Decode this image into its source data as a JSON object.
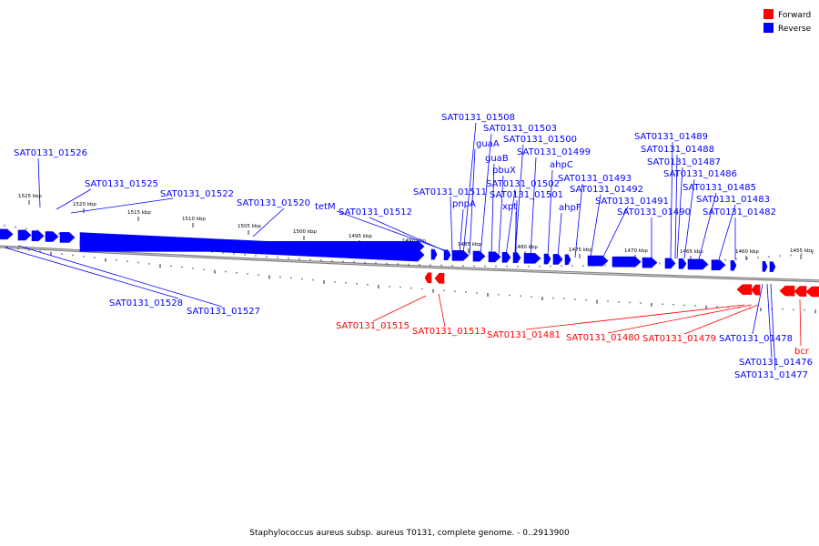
{
  "colors": {
    "forward": "#ff0000",
    "reverse": "#0000ff",
    "backbone": "#808080"
  },
  "legend": [
    {
      "label": "Forward",
      "color": "#ff0000"
    },
    {
      "label": "Reverse",
      "color": "#0000ff"
    }
  ],
  "caption": "Staphylococcus aureus subsp. aureus T0131, complete genome. - 0..2913900",
  "ticks": [
    "1525 kbp",
    "1520 kbp",
    "1515 kbp",
    "1510 kbp",
    "1505 kbp",
    "1500 kbp",
    "1495 kbp",
    "1490 kbp",
    "1485 kbp",
    "1480 kbp",
    "1475 kbp",
    "1470 kbp",
    "1465 kbp",
    "1460 kbp",
    "1455 kbp"
  ],
  "labels": {
    "reverse_top": [
      "SAT0131_01526",
      "SAT0131_01525",
      "SAT0131_01522",
      "SAT0131_01520",
      "tetM",
      "SAT0131_01512",
      "SAT0131_01511",
      "pnpA",
      "SAT0131_01508",
      "guaA",
      "SAT0131_01503",
      "guaB",
      "pbuX",
      "SAT0131_01502",
      "xpt",
      "SAT0131_01501",
      "SAT0131_01500",
      "SAT0131_01499",
      "ahpC",
      "ahpF",
      "SAT0131_01493",
      "SAT0131_01492",
      "SAT0131_01491",
      "SAT0131_01490",
      "SAT0131_01489",
      "SAT0131_01488",
      "SAT0131_01487",
      "SAT0131_01486",
      "SAT0131_01485",
      "SAT0131_01483",
      "SAT0131_01482"
    ],
    "reverse_bottom": [
      "SAT0131_01528",
      "SAT0131_01527",
      "SAT0131_01478",
      "SAT0131_01476",
      "SAT0131_01477"
    ],
    "forward": [
      "SAT0131_01515",
      "SAT0131_01513",
      "SAT0131_01481",
      "SAT0131_01480",
      "SAT0131_01479",
      "bcr"
    ]
  }
}
